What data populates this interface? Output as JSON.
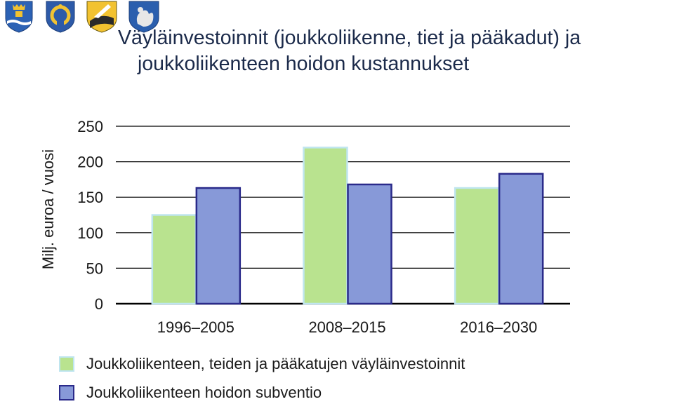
{
  "title": {
    "line1": "Väyläinvestoinnit (joukkoliikenne, tiet ja pääkadut) ja",
    "line2": "joukkoliikenteen hoidon kustannukset"
  },
  "emblems": [
    "coat-of-arms-helsinki-icon",
    "coat-of-arms-espoo-icon",
    "coat-of-arms-kauniainen-icon",
    "coat-of-arms-vantaa-icon"
  ],
  "colors": {
    "series1": "#b9e38f",
    "series1_border": "#bfe5ef",
    "series2": "#8799d8",
    "series2_border": "#2a2a8a",
    "axis": "#000000",
    "grid": "#000000"
  },
  "chart_data": {
    "type": "bar",
    "title": "Väyläinvestoinnit (joukkoliikenne, tiet ja pääkadut) ja joukkoliikenteen hoidon kustannukset",
    "xlabel": "",
    "ylabel": "Milj. euroa / vuosi",
    "ylim": [
      0,
      250
    ],
    "yticks": [
      0,
      50,
      100,
      150,
      200,
      250
    ],
    "grid": true,
    "legend_position": "bottom",
    "categories": [
      "1996–2005",
      "2008–2015",
      "2016–2030"
    ],
    "series": [
      {
        "name": "Joukkoliikenteen, teiden ja pääkatujen väyläinvestoinnit",
        "values": [
          125,
          220,
          163
        ]
      },
      {
        "name": "Joukkoliikenteen hoidon subventio",
        "values": [
          163,
          168,
          183
        ]
      }
    ]
  }
}
